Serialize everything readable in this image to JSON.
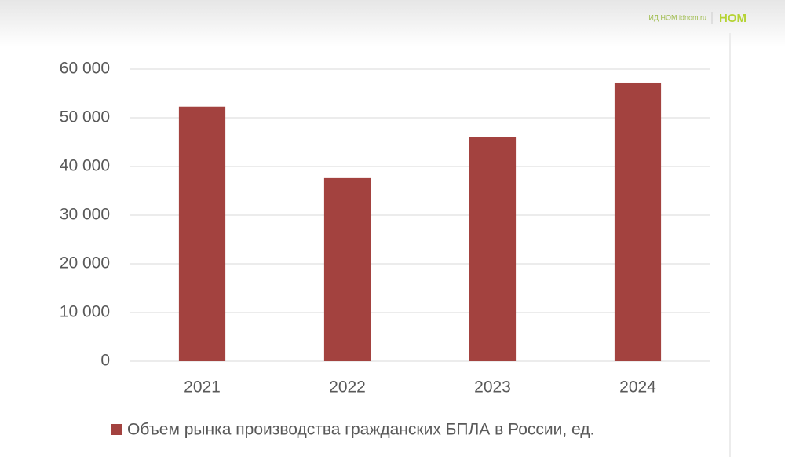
{
  "brand": {
    "source": "ИД НОМ idnom.ru",
    "logo": "НОМ"
  },
  "chart_data": {
    "type": "bar",
    "categories": [
      "2021",
      "2022",
      "2023",
      "2024"
    ],
    "series": [
      {
        "name": "Объем рынка производства гражданских БПЛА в России, ед.",
        "color": "#a3423f",
        "values": [
          52300,
          37600,
          46100,
          57100
        ]
      }
    ],
    "ylim": [
      0,
      60000
    ],
    "yticks": [
      0,
      {
        "value": 10000,
        "label": "10 000"
      },
      {
        "value": 20000,
        "label": "20 000"
      },
      {
        "value": 30000,
        "label": "30 000"
      },
      {
        "value": 40000,
        "label": "40 000"
      },
      {
        "value": 50000,
        "label": "50 000"
      },
      {
        "value": 60000,
        "label": "60 000"
      }
    ],
    "grid": true,
    "legend": "bottom"
  }
}
